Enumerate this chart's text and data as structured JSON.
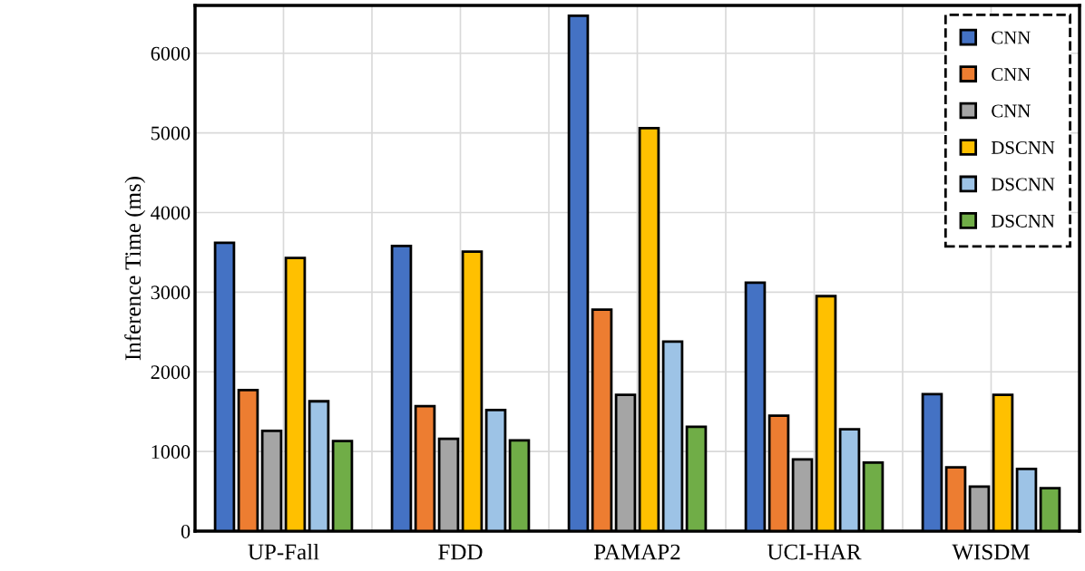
{
  "chart_data": {
    "type": "bar",
    "ylabel": "Inference Time (ms)",
    "categories": [
      "UP-Fall",
      "FDD",
      "PAMAP2",
      "UCI-HAR",
      "WISDM"
    ],
    "series": [
      {
        "name": "CNN",
        "color": "#4472c4",
        "values": [
          3620,
          3580,
          6470,
          3120,
          1720
        ]
      },
      {
        "name": "CNN",
        "color": "#ed7d31",
        "values": [
          1770,
          1570,
          2780,
          1450,
          800
        ]
      },
      {
        "name": "CNN",
        "color": "#a5a5a5",
        "values": [
          1260,
          1160,
          1710,
          900,
          560
        ]
      },
      {
        "name": "DSCNN",
        "color": "#ffc000",
        "values": [
          3430,
          3510,
          5060,
          2950,
          1710
        ]
      },
      {
        "name": "DSCNN",
        "color": "#9dc3e6",
        "values": [
          1630,
          1520,
          2380,
          1280,
          780
        ]
      },
      {
        "name": "DSCNN",
        "color": "#70ad47",
        "values": [
          1130,
          1140,
          1310,
          860,
          540
        ]
      }
    ],
    "ylim": [
      0,
      6600
    ],
    "yticks": [
      0,
      1000,
      2000,
      3000,
      4000,
      5000,
      6000
    ],
    "grid": true,
    "legend": "top right"
  }
}
